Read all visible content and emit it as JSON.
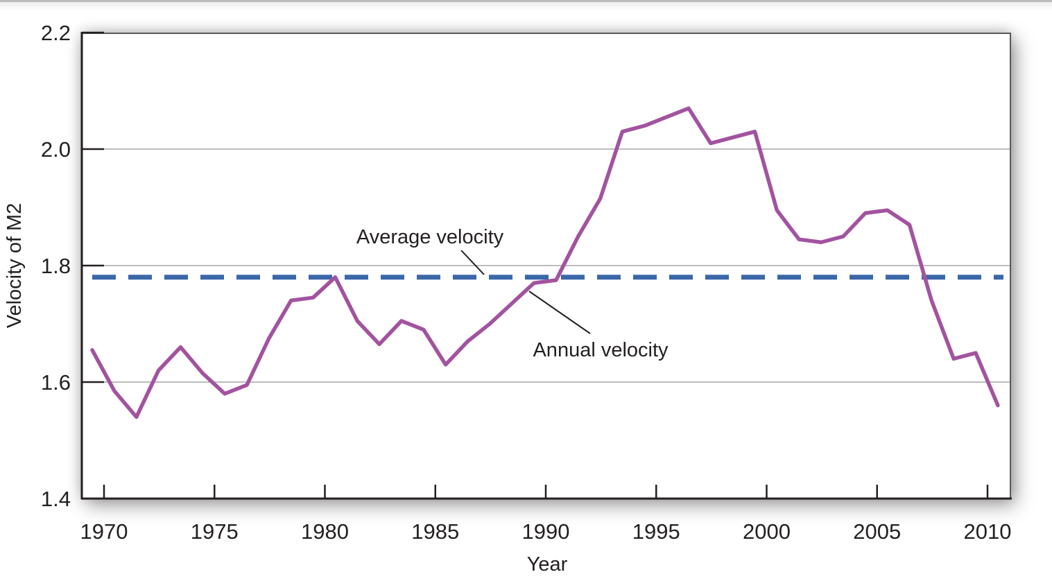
{
  "figure": {
    "y_axis_label": "Velocity of M2",
    "x_axis_label": "Year",
    "annotation_average": "Average velocity",
    "annotation_annual": "Annual velocity"
  },
  "chart_data": {
    "type": "line",
    "title": "",
    "xlabel": "Year",
    "ylabel": "Velocity of M2",
    "ylim": [
      1.4,
      2.2
    ],
    "y_ticks": [
      "2.2",
      "2.0",
      "1.8",
      "1.6",
      "1.4"
    ],
    "y_tick_values": [
      2.2,
      2.0,
      1.8,
      1.6,
      1.4
    ],
    "x_ticks": [
      1970,
      1975,
      1980,
      1985,
      1990,
      1995,
      2000,
      2005,
      2010
    ],
    "gridline_values": [
      1.6,
      1.8,
      2.0
    ],
    "grid": "horizontal gridlines only",
    "legend_position": "in-plot text annotations with pointer lines",
    "notes": "annual data points are plotted at mid-year positions, beginning half a year left of the 1970 tick",
    "years": [
      1970,
      1971,
      1972,
      1973,
      1974,
      1975,
      1976,
      1977,
      1978,
      1979,
      1980,
      1981,
      1982,
      1983,
      1984,
      1985,
      1986,
      1987,
      1988,
      1989,
      1990,
      1991,
      1992,
      1993,
      1994,
      1995,
      1996,
      1997,
      1998,
      1999,
      2000,
      2001,
      2002,
      2003,
      2004,
      2005,
      2006,
      2007,
      2008,
      2009,
      2010,
      2011
    ],
    "series": [
      {
        "name": "Annual velocity",
        "type": "line",
        "color": "#a2539f",
        "values": [
          1.655,
          1.585,
          1.54,
          1.62,
          1.66,
          1.615,
          1.58,
          1.595,
          1.675,
          1.74,
          1.745,
          1.78,
          1.705,
          1.665,
          1.705,
          1.69,
          1.63,
          1.67,
          1.7,
          1.735,
          1.77,
          1.775,
          1.85,
          1.915,
          2.03,
          2.04,
          2.055,
          2.07,
          2.01,
          2.02,
          2.03,
          1.895,
          1.845,
          1.84,
          1.85,
          1.89,
          1.895,
          1.87,
          1.74,
          1.64,
          1.65,
          1.56
        ]
      },
      {
        "name": "Average velocity",
        "type": "horizontal-dashed-line",
        "color": "#3a67a8",
        "value": 1.78
      }
    ],
    "colors": {
      "axis": "#231f20",
      "frame": "#58595b",
      "gridline": "#b3b3b3",
      "annotation_text": "#231f20"
    }
  }
}
